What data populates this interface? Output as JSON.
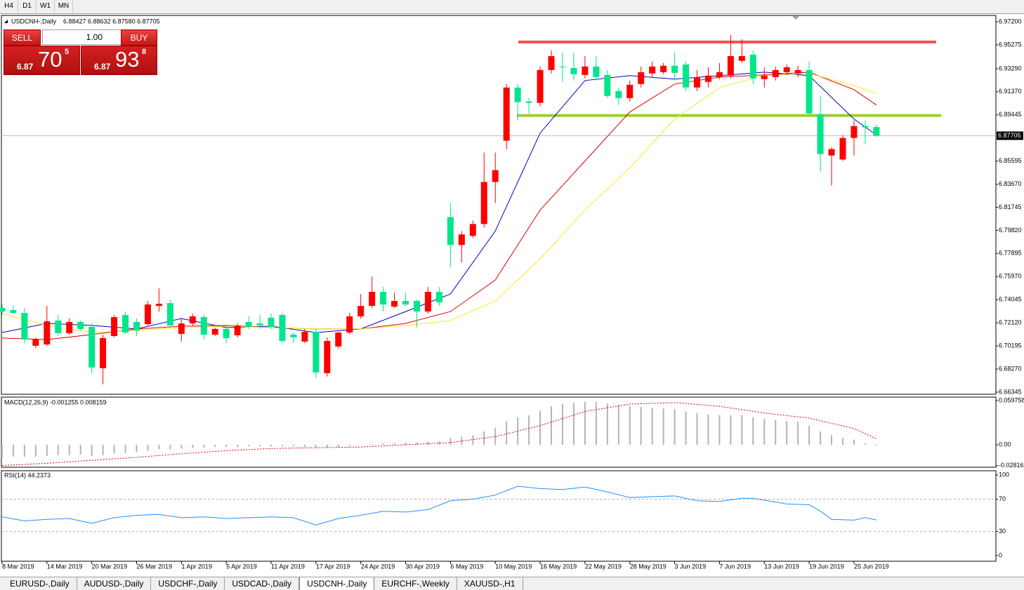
{
  "ui": {
    "timeframes": [
      "H4",
      "D1",
      "W1",
      "MN"
    ],
    "trade_panel": {
      "sell": "SELL",
      "buy": "BUY",
      "lot": "1.00",
      "sell_price": {
        "small": "6.87",
        "big": "70",
        "frac": "5"
      },
      "buy_price": {
        "small": "6.87",
        "big": "93",
        "frac": "8"
      }
    },
    "tabs": [
      "EURUSD-,Daily",
      "AUDUSD-,Daily",
      "USDCHF-,Daily",
      "USDCAD-,Daily",
      "USDCNH-,Daily",
      "EURCHF-,Weekly",
      "XAUUSD-,H1"
    ],
    "active_tab": 4
  },
  "chart_data": [
    {
      "type": "candlestick",
      "title": "USDCNH-,Daily",
      "ohlc_text": "6.88427 6.88632 6.87580 6.87705",
      "up_color": "#ff0000",
      "down_color": "#00e68a",
      "open": [
        6.7336,
        6.7318,
        6.7295,
        6.7021,
        6.7032,
        6.7231,
        6.7126,
        6.7219,
        6.7178,
        6.6834,
        6.7102,
        6.7277,
        6.7219,
        6.7201,
        6.7353,
        6.7376,
        6.712,
        6.7207,
        6.726,
        6.7114,
        6.7161,
        6.7108,
        6.7219,
        6.7207,
        6.7254,
        6.7277,
        6.7114,
        6.7056,
        6.7137,
        6.6793,
        6.7015,
        6.7131,
        6.7266,
        6.7353,
        6.747,
        6.7347,
        6.7394,
        6.7394,
        6.7306,
        6.747,
        6.8093,
        6.786,
        6.7936,
        6.8035,
        6.8385,
        6.8729,
        6.9172,
        6.9055,
        6.9044,
        6.9318,
        6.9347,
        6.9335,
        6.9277,
        6.9347,
        6.9277,
        6.9143,
        6.9084,
        6.9201,
        6.9289,
        6.93,
        6.9353,
        6.9364,
        6.9172,
        6.9219,
        6.9259,
        6.9271,
        6.9394,
        6.9446,
        6.9242,
        6.9259,
        6.93,
        6.9289,
        6.9318,
        6.895,
        6.8606,
        6.8572,
        6.8752,
        6.8851,
        6.88427
      ],
      "high": [
        6.7365,
        6.7353,
        6.7336,
        6.7091,
        6.7353,
        6.7277,
        6.7248,
        6.7231,
        6.7207,
        6.7114,
        6.7277,
        6.7306,
        6.7248,
        6.7394,
        6.7499,
        6.7405,
        6.7248,
        6.7289,
        6.7277,
        6.7172,
        6.719,
        6.7207,
        6.7266,
        6.7277,
        6.7289,
        6.7295,
        6.7131,
        6.7161,
        6.7161,
        6.7091,
        6.7137,
        6.7295,
        6.7452,
        6.7598,
        6.751,
        6.7464,
        6.7464,
        6.7405,
        6.751,
        6.751,
        6.821,
        6.7977,
        6.8064,
        6.863,
        6.863,
        6.9201,
        6.9201,
        6.9084,
        6.9347,
        6.9481,
        6.9463,
        6.9463,
        6.9434,
        6.9434,
        6.9318,
        6.9172,
        6.923,
        6.9347,
        6.9388,
        6.9376,
        6.9463,
        6.9388,
        6.9318,
        6.9341,
        6.9376,
        6.9609,
        6.9574,
        6.9481,
        6.9341,
        6.9347,
        6.9364,
        6.9353,
        6.9388,
        6.9102,
        6.8676,
        6.8776,
        6.8898,
        6.8898,
        6.88632
      ],
      "low": [
        6.7277,
        6.7289,
        6.7044,
        6.7003,
        6.7021,
        6.7102,
        6.7114,
        6.7149,
        6.6793,
        6.67,
        6.7091,
        6.712,
        6.7102,
        6.719,
        6.7306,
        6.7178,
        6.7056,
        6.719,
        6.7073,
        6.7102,
        6.7044,
        6.7091,
        6.7161,
        6.7161,
        6.7161,
        6.7044,
        6.7044,
        6.7044,
        6.6752,
        6.6764,
        6.6997,
        6.7114,
        6.7248,
        6.7336,
        6.7306,
        6.7336,
        6.7353,
        6.7172,
        6.7289,
        6.7353,
        6.7674,
        6.7714,
        6.7919,
        6.8006,
        6.821,
        6.8659,
        6.8898,
        6.8956,
        6.9015,
        6.9289,
        6.9219,
        6.923,
        6.9248,
        6.923,
        6.9084,
        6.9026,
        6.9055,
        6.9172,
        6.9259,
        6.9283,
        6.923,
        6.9143,
        6.9143,
        6.9172,
        6.9242,
        6.9248,
        6.9376,
        6.9201,
        6.9172,
        6.923,
        6.9277,
        6.9259,
        6.895,
        6.8472,
        6.8356,
        6.856,
        6.8606,
        6.87,
        6.8758
      ],
      "close": [
        6.7306,
        6.7295,
        6.7073,
        6.7073,
        6.7225,
        6.7126,
        6.7219,
        6.7161,
        6.684,
        6.7085,
        6.726,
        6.7131,
        6.7149,
        6.7365,
        6.7371,
        6.719,
        6.7207,
        6.7266,
        6.7114,
        6.7161,
        6.7085,
        6.719,
        6.7178,
        6.719,
        6.7178,
        6.7061,
        6.7091,
        6.7137,
        6.6799,
        6.7061,
        6.7131,
        6.7266,
        6.7353,
        6.747,
        6.7365,
        6.7394,
        6.7365,
        6.7306,
        6.747,
        6.7382,
        6.786,
        6.7948,
        6.8035,
        6.8385,
        6.8484,
        6.9172,
        6.905,
        6.9044,
        6.9318,
        6.9434,
        6.9341,
        6.9283,
        6.9347,
        6.9259,
        6.9102,
        6.9084,
        6.9195,
        6.93,
        6.9347,
        6.9353,
        6.9294,
        6.9172,
        6.9259,
        6.9271,
        6.93,
        6.9434,
        6.9434,
        6.9248,
        6.9271,
        6.9318,
        6.9341,
        6.9318,
        6.8956,
        6.8618,
        6.8659,
        6.8752,
        6.8851,
        6.884,
        6.87705
      ],
      "overlays": [
        {
          "color": "#0000cd",
          "x": [
            0,
            4,
            8,
            12,
            16,
            20,
            24,
            28,
            32,
            36,
            40,
            44,
            48,
            52,
            56,
            60,
            64,
            68,
            72,
            76,
            78
          ],
          "values": [
            6.7131,
            6.7207,
            6.719,
            6.7161,
            6.7248,
            6.7172,
            6.7184,
            6.7131,
            6.7161,
            6.7306,
            6.7452,
            6.7977,
            6.8793,
            6.923,
            6.9271,
            6.9242,
            6.9271,
            6.93,
            6.9271,
            6.891,
            6.8776
          ]
        },
        {
          "color": "#e00000",
          "x": [
            0,
            4,
            8,
            12,
            16,
            20,
            24,
            28,
            32,
            36,
            40,
            44,
            48,
            52,
            56,
            60,
            64,
            68,
            72,
            76,
            78
          ],
          "values": [
            6.7085,
            6.7073,
            6.7114,
            6.7161,
            6.7184,
            6.719,
            6.7172,
            6.7161,
            6.7161,
            6.7207,
            6.7306,
            6.7569,
            6.8152,
            6.856,
            6.8968,
            6.9201,
            6.9259,
            6.9277,
            6.93,
            6.9154,
            6.9026
          ]
        },
        {
          "color": "#f5e62a",
          "x": [
            0,
            4,
            8,
            12,
            16,
            20,
            24,
            28,
            32,
            36,
            40,
            44,
            48,
            52,
            56,
            60,
            64,
            68,
            72,
            76,
            78
          ],
          "values": [
            6.7289,
            6.719,
            6.7131,
            6.7149,
            6.7172,
            6.7184,
            6.7172,
            6.7161,
            6.7161,
            6.719,
            6.7231,
            6.7394,
            6.7744,
            6.8152,
            6.8502,
            6.891,
            6.9172,
            6.9271,
            6.9289,
            6.9189,
            6.9125
          ]
        }
      ],
      "levels": [
        {
          "color": "#f25050",
          "value": 6.9551,
          "x": [
            46.05,
            83.33
          ]
        },
        {
          "color": "#9acd32",
          "value": 6.8939,
          "x": [
            45.93,
            83.77
          ]
        }
      ],
      "current_price": 6.87705,
      "xlim": [
        -0.06,
        88.66
      ],
      "ylim": [
        6.6617,
        6.97725
      ],
      "yticks": [
        {
          "value": 6.972,
          "label": "6.97200"
        },
        {
          "value": 6.95275,
          "label": "6.95275"
        },
        {
          "value": 6.9329,
          "label": "6.93290"
        },
        {
          "value": 6.9137,
          "label": "6.91370"
        },
        {
          "value": 6.89445,
          "label": "6.89445"
        },
        {
          "value": 6.85595,
          "label": "6.85595"
        },
        {
          "value": 6.8367,
          "label": "6.83670"
        },
        {
          "value": 6.81745,
          "label": "6.81745"
        },
        {
          "value": 6.7982,
          "label": "6.79820"
        },
        {
          "value": 6.77895,
          "label": "6.77895"
        },
        {
          "value": 6.7597,
          "label": "6.75970"
        },
        {
          "value": 6.74045,
          "label": "6.74045"
        },
        {
          "value": 6.7212,
          "label": "6.72120"
        },
        {
          "value": 6.70195,
          "label": "6.70195"
        },
        {
          "value": 6.6827,
          "label": "6.68270"
        },
        {
          "value": 6.66345,
          "label": "6.66345"
        }
      ],
      "xticks": [
        {
          "value": 0,
          "label": "8 Mar 2019"
        },
        {
          "value": 4,
          "label": "14 Mar 2019"
        },
        {
          "value": 8,
          "label": "20 Mar 2019"
        },
        {
          "value": 12,
          "label": "26 Mar 2019"
        },
        {
          "value": 16,
          "label": "1 Apr 2019"
        },
        {
          "value": 20,
          "label": "5 Apr 2019"
        },
        {
          "value": 24,
          "label": "11 Apr 2019"
        },
        {
          "value": 28,
          "label": "17 Apr 2019"
        },
        {
          "value": 32,
          "label": "24 Apr 2019"
        },
        {
          "value": 36,
          "label": "30 Apr 2019"
        },
        {
          "value": 40,
          "label": "6 May 2019"
        },
        {
          "value": 44,
          "label": "10 May 2019"
        },
        {
          "value": 48,
          "label": "16 May 2019"
        },
        {
          "value": 52,
          "label": "22 May 2019"
        },
        {
          "value": 56,
          "label": "28 May 2019"
        },
        {
          "value": 60,
          "label": "3 Jun 2019"
        },
        {
          "value": 64,
          "label": "7 Jun 2019"
        },
        {
          "value": 68,
          "label": "13 Jun 2019"
        },
        {
          "value": 72,
          "label": "19 Jun 2019"
        },
        {
          "value": 76,
          "label": "25 Jun 2019"
        }
      ]
    },
    {
      "type": "macd",
      "label": "MACD(12,26,9) -0.001255 0.008159",
      "color": "#b4b4b4",
      "values": [
        -0.017,
        -0.016,
        -0.016,
        -0.016,
        -0.015,
        -0.014,
        -0.014,
        -0.013,
        -0.015,
        -0.014,
        -0.012,
        -0.011,
        -0.01,
        -0.008,
        -0.006,
        -0.006,
        -0.005,
        -0.004,
        -0.004,
        -0.003,
        -0.003,
        -0.003,
        -0.002,
        -0.002,
        -0.002,
        -0.002,
        -0.002,
        -0.003,
        -0.004,
        -0.004,
        -0.003,
        -0.002,
        0.0,
        0.001,
        0.002,
        0.002,
        0.003,
        0.003,
        0.004,
        0.005,
        0.009,
        0.011,
        0.013,
        0.018,
        0.023,
        0.032,
        0.037,
        0.04,
        0.046,
        0.052,
        0.055,
        0.057,
        0.058,
        0.058,
        0.056,
        0.054,
        0.052,
        0.051,
        0.05,
        0.049,
        0.048,
        0.045,
        0.043,
        0.041,
        0.04,
        0.04,
        0.04,
        0.037,
        0.035,
        0.034,
        0.032,
        0.031,
        0.026,
        0.018,
        0.013,
        0.009,
        0.007,
        0.002,
        -0.001255
      ],
      "signal": {
        "color": "#e00000",
        "x": [
          0,
          4,
          8,
          12,
          16,
          20,
          24,
          28,
          32,
          36,
          40,
          44,
          48,
          52,
          56,
          60,
          64,
          68,
          72,
          76,
          78
        ],
        "values": [
          -0.028,
          -0.025,
          -0.021,
          -0.017,
          -0.012,
          -0.008,
          -0.005,
          -0.004,
          -0.003,
          0.0,
          0.003,
          0.011,
          0.026,
          0.045,
          0.055,
          0.057,
          0.052,
          0.043,
          0.036,
          0.022,
          0.008159
        ]
      },
      "xlim": [
        -0.06,
        88.66
      ],
      "ylim": [
        -0.03035,
        0.0645
      ],
      "yticks": [
        0.059758,
        {
          "value": 0,
          "label": "0.00"
        },
        -0.028163
      ]
    },
    {
      "type": "line",
      "label": "RSI(14) 44.2373",
      "color": "#1e90ff",
      "x": [
        0,
        2,
        4,
        6,
        8,
        10,
        12,
        14,
        16,
        18,
        20,
        22,
        24,
        26,
        28,
        30,
        32,
        34,
        36,
        38,
        40,
        42,
        44,
        46,
        48,
        50,
        52,
        54,
        56,
        58,
        60,
        62,
        64,
        66,
        67,
        70,
        72,
        73,
        74,
        76,
        77,
        78
      ],
      "values": [
        48,
        43,
        45,
        46,
        40,
        47,
        50,
        51,
        47,
        48,
        46,
        47,
        48,
        47,
        38,
        46,
        50,
        55,
        54,
        57,
        68,
        70,
        75,
        86,
        83,
        82,
        85,
        79,
        72,
        73,
        74,
        68,
        67,
        71,
        71,
        64,
        63,
        55,
        45,
        44,
        47,
        44.2373
      ],
      "levels": [
        70,
        30
      ],
      "xlim": [
        -0.06,
        88.66
      ],
      "ylim": [
        -7,
        105.2
      ],
      "yticks": [
        100,
        70,
        30,
        0
      ]
    }
  ]
}
